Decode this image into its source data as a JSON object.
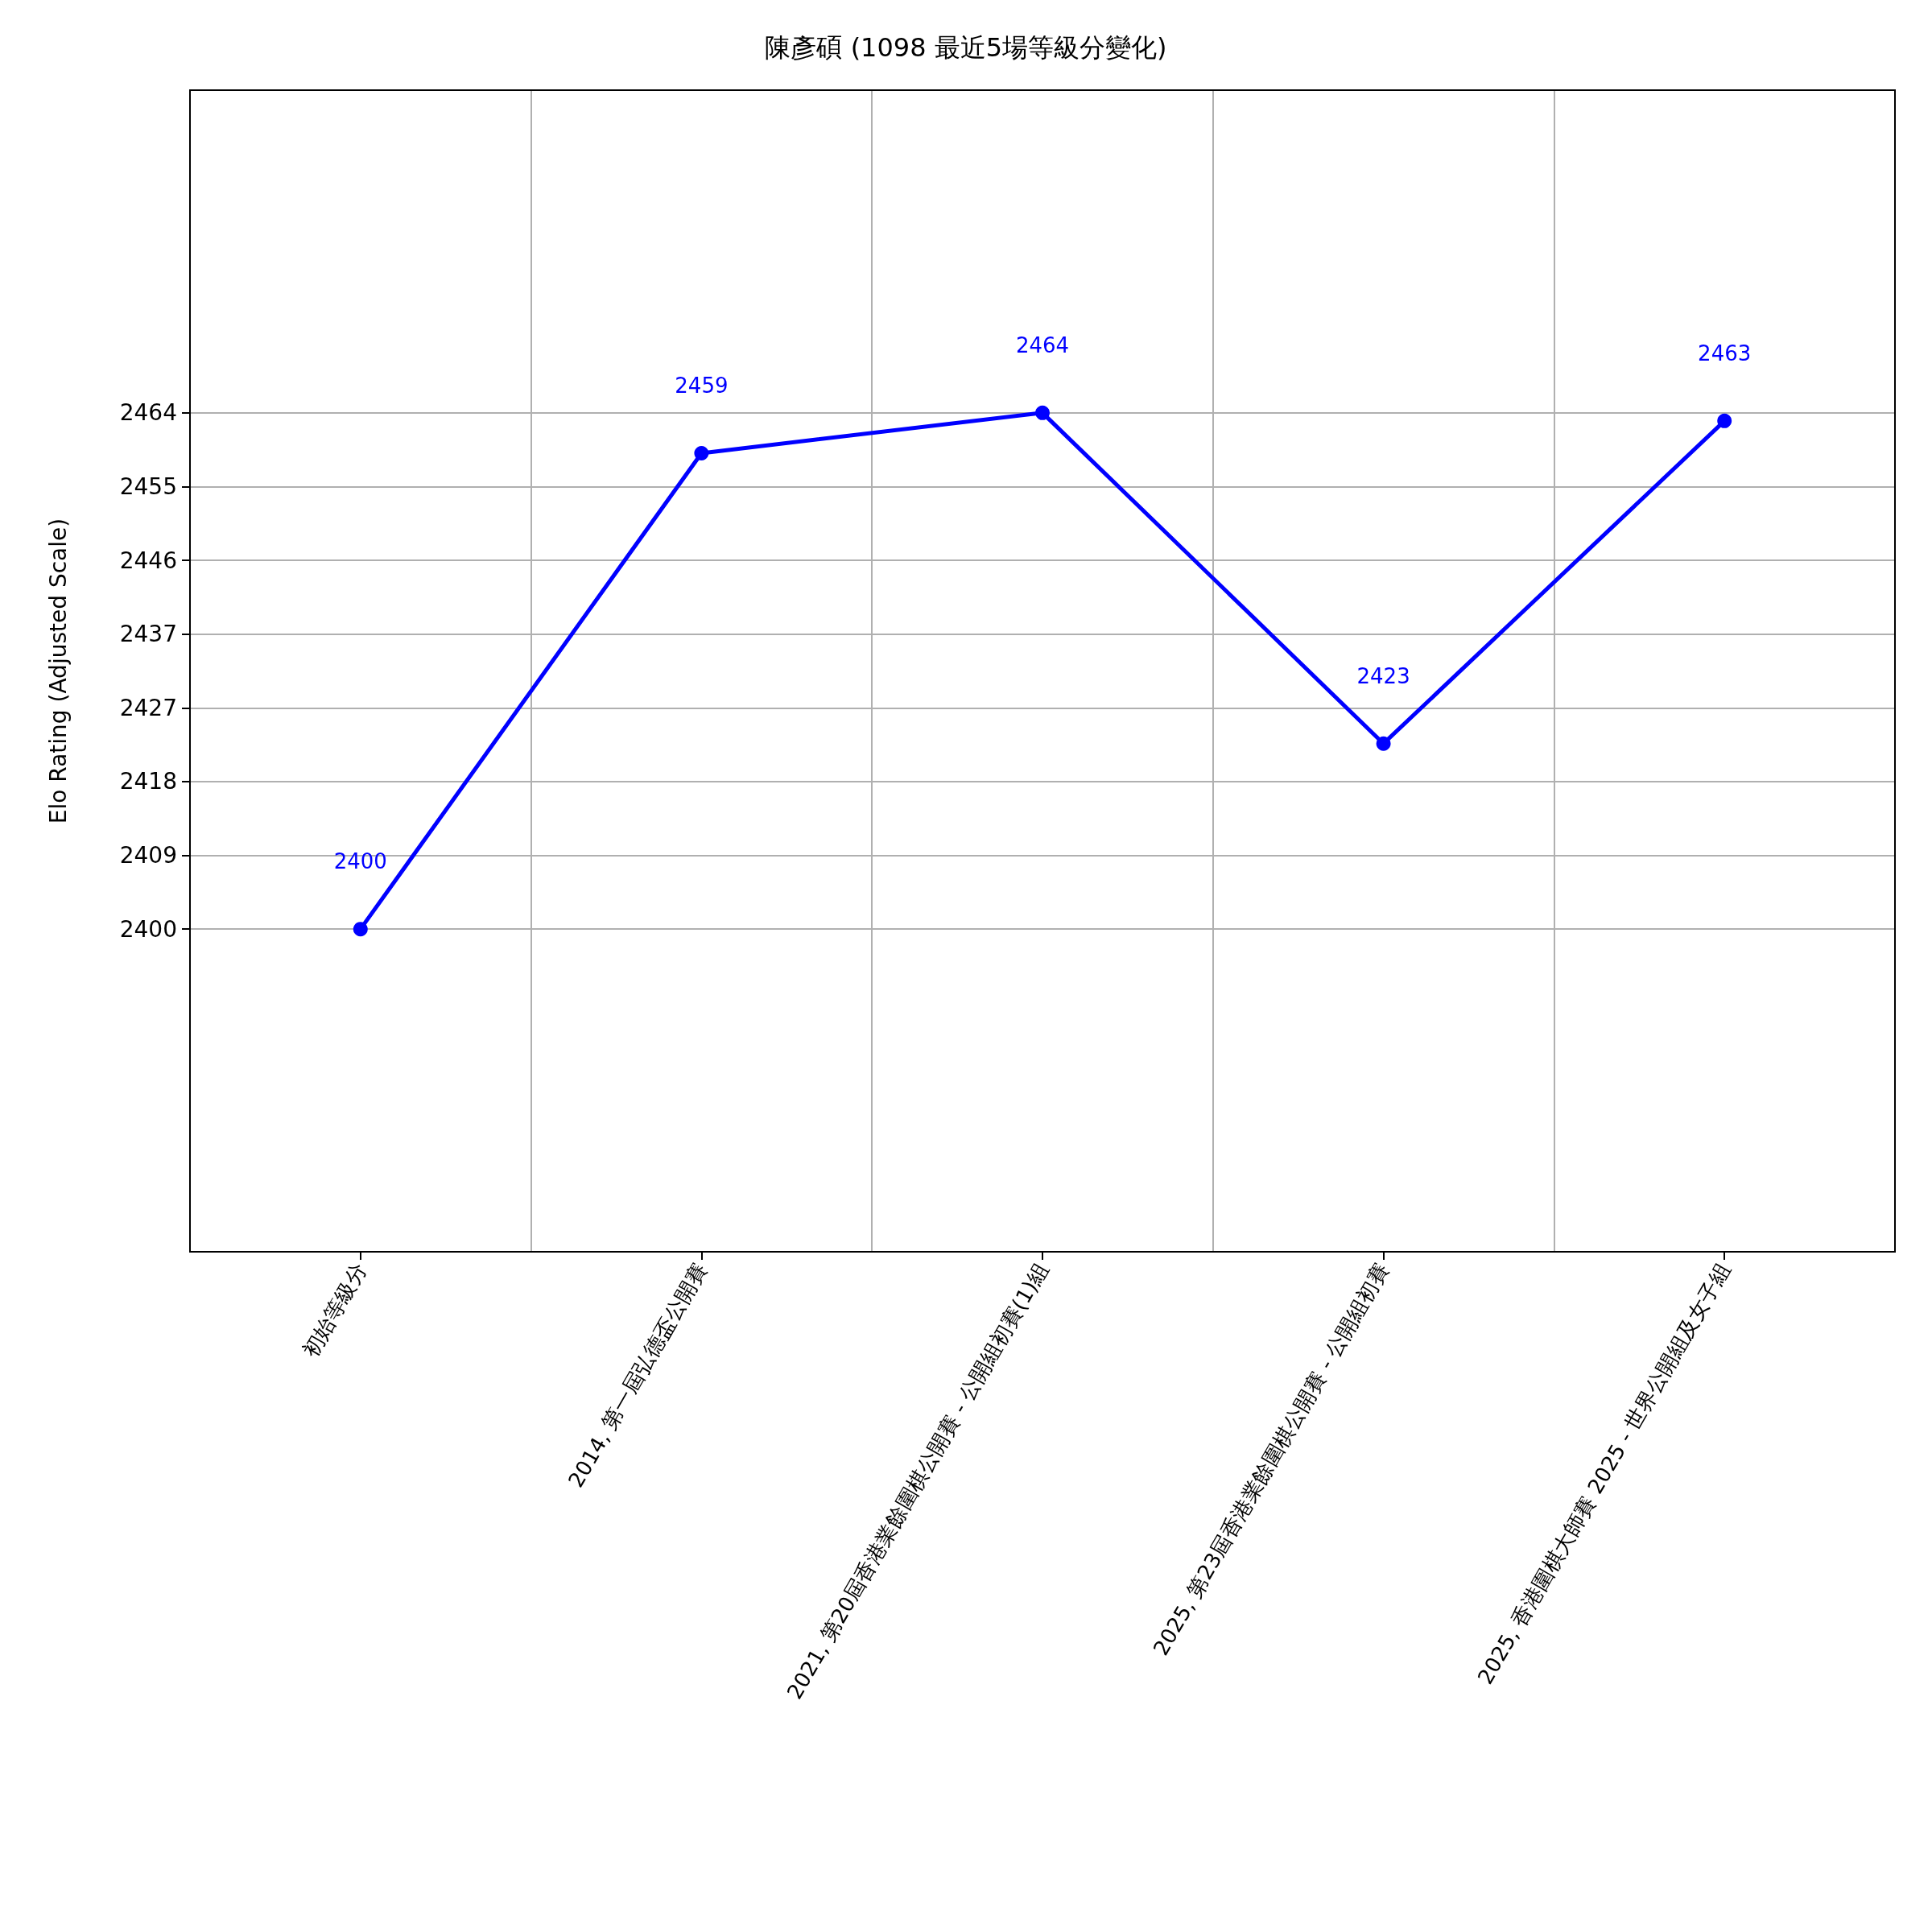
{
  "chart_data": {
    "type": "line",
    "title": "陳彥碩 (1098 最近5場等級分變化)",
    "ylabel": "Elo Rating (Adjusted Scale)",
    "categories": [
      "初始等級分",
      "2014, 第一屆弘德盃公開賽",
      "2021, 第20屆香港業餘圍棋公開賽 - 公開組初賽(1)組",
      "2025, 第23屆香港業餘圍棋公開賽 - 公開組初賽",
      "2025, 香港圍棋大師賽 2025 - 世界公開組及女子組"
    ],
    "series": [
      {
        "color": "#0000ff",
        "values": [
          2400,
          2459,
          2464,
          2423,
          2463
        ]
      }
    ],
    "data_labels": true,
    "marker": "circle",
    "line_style": "solid",
    "grid": true,
    "ylim": [
      2360,
      2504
    ],
    "yticks": [
      2400,
      {
        "value": 2409.142857,
        "label": "2409"
      },
      {
        "value": 2418.285714,
        "label": "2418"
      },
      {
        "value": 2427.428571,
        "label": "2427"
      },
      {
        "value": 2436.571429,
        "label": "2437"
      },
      {
        "value": 2445.714286,
        "label": "2446"
      },
      {
        "value": 2454.857143,
        "label": "2455"
      },
      2464
    ]
  }
}
